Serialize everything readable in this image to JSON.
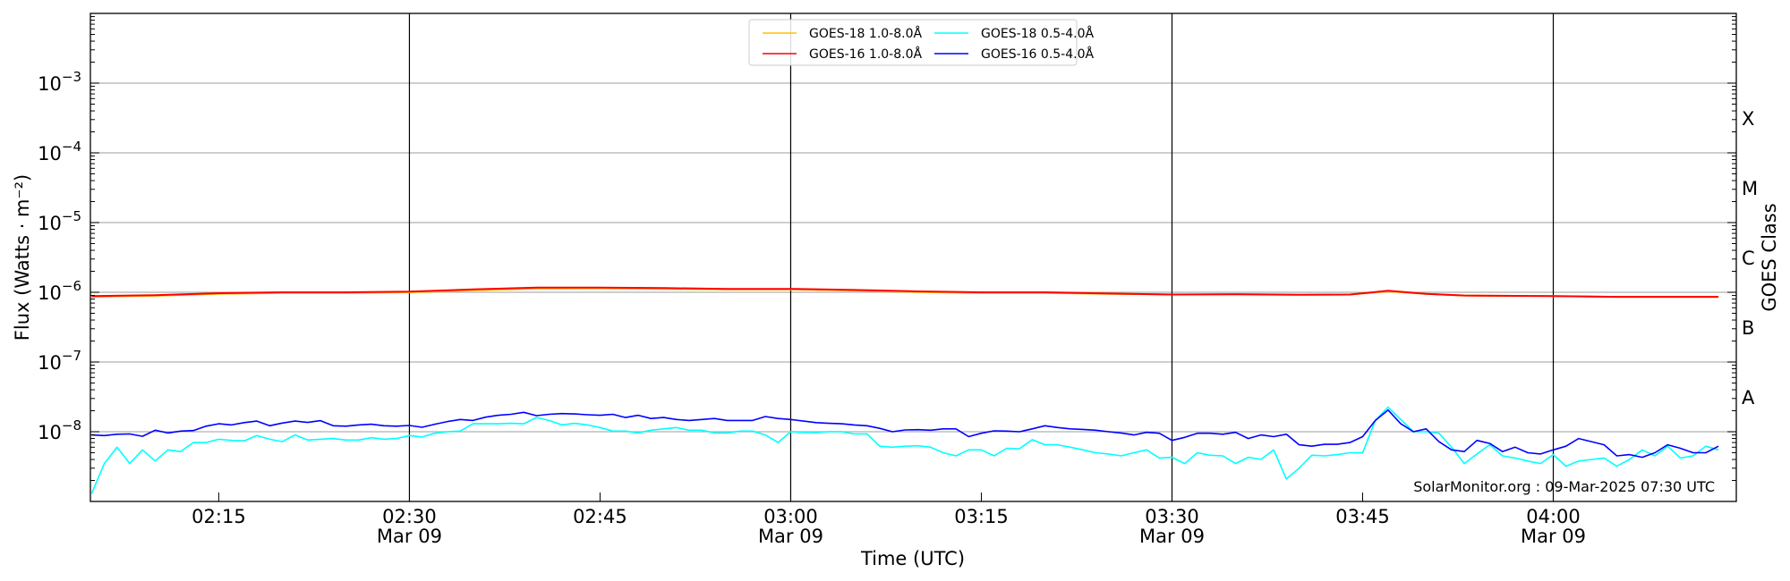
{
  "chart_data": {
    "type": "line",
    "xlabel": "Time (UTC)",
    "ylabel": "Flux (Watts · m⁻²)",
    "ylabel_right": "GOES Class",
    "yscale": "log",
    "ylim": [
      1e-09,
      0.01
    ],
    "xlim": [
      "02:04:54",
      "04:14:24"
    ],
    "grid": "horizontal at decades, vertical lines at major ticks",
    "legend_position": "top-center",
    "watermark": "SolarMonitor.org : 09-Mar-2025 07:30 UTC",
    "y_ticks": [
      {
        "value": 1e-08,
        "label": "10",
        "exp": "−8"
      },
      {
        "value": 1e-07,
        "label": "10",
        "exp": "−7"
      },
      {
        "value": 1e-06,
        "label": "10",
        "exp": "−6"
      },
      {
        "value": 1e-05,
        "label": "10",
        "exp": "−5"
      },
      {
        "value": 0.0001,
        "label": "10",
        "exp": "−4"
      },
      {
        "value": 0.001,
        "label": "10",
        "exp": "−3"
      }
    ],
    "class_labels": [
      {
        "label": "A",
        "value": 3.16e-08
      },
      {
        "label": "B",
        "value": 3.16e-07
      },
      {
        "label": "C",
        "value": 3.16e-06
      },
      {
        "label": "M",
        "value": 3.16e-05
      },
      {
        "label": "X",
        "value": 0.000316
      }
    ],
    "x_ticks": [
      {
        "time": "02:15",
        "label": "02:15",
        "date": ""
      },
      {
        "time": "02:30",
        "label": "02:30",
        "date": "Mar 09"
      },
      {
        "time": "02:45",
        "label": "02:45",
        "date": ""
      },
      {
        "time": "03:00",
        "label": "03:00",
        "date": "Mar 09"
      },
      {
        "time": "03:15",
        "label": "03:15",
        "date": ""
      },
      {
        "time": "03:30",
        "label": "03:30",
        "date": "Mar 09"
      },
      {
        "time": "03:45",
        "label": "03:45",
        "date": ""
      },
      {
        "time": "04:00",
        "label": "04:00",
        "date": "Mar 09"
      }
    ],
    "long_times": [
      "02:05",
      "02:10",
      "02:15",
      "02:20",
      "02:25",
      "02:30",
      "02:35",
      "02:40",
      "02:45",
      "02:50",
      "02:55",
      "03:00",
      "03:05",
      "03:10",
      "03:15",
      "03:20",
      "03:25",
      "03:30",
      "03:35",
      "03:40",
      "03:44",
      "03:47",
      "03:50",
      "03:53",
      "04:00",
      "04:05",
      "04:13"
    ],
    "short_times": [
      "02:05",
      "02:06",
      "02:07",
      "02:08",
      "02:09",
      "02:10",
      "02:11",
      "02:12",
      "02:13",
      "02:14",
      "02:15",
      "02:16",
      "02:17",
      "02:18",
      "02:19",
      "02:20",
      "02:21",
      "02:22",
      "02:23",
      "02:24",
      "02:25",
      "02:26",
      "02:27",
      "02:28",
      "02:29",
      "02:30",
      "02:31",
      "02:32",
      "02:33",
      "02:34",
      "02:35",
      "02:36",
      "02:37",
      "02:38",
      "02:39",
      "02:40",
      "02:41",
      "02:42",
      "02:43",
      "02:44",
      "02:45",
      "02:46",
      "02:47",
      "02:48",
      "02:49",
      "02:50",
      "02:51",
      "02:52",
      "02:53",
      "02:54",
      "02:55",
      "02:56",
      "02:57",
      "02:58",
      "02:59",
      "03:00",
      "03:01",
      "03:02",
      "03:03",
      "03:04",
      "03:05",
      "03:06",
      "03:07",
      "03:08",
      "03:09",
      "03:10",
      "03:11",
      "03:12",
      "03:13",
      "03:14",
      "03:15",
      "03:16",
      "03:17",
      "03:18",
      "03:19",
      "03:20",
      "03:21",
      "03:22",
      "03:23",
      "03:24",
      "03:25",
      "03:26",
      "03:27",
      "03:28",
      "03:29",
      "03:30",
      "03:31",
      "03:32",
      "03:33",
      "03:34",
      "03:35",
      "03:36",
      "03:37",
      "03:38",
      "03:39",
      "03:40",
      "03:41",
      "03:42",
      "03:43",
      "03:44",
      "03:45",
      "03:46",
      "03:47",
      "03:48",
      "03:49",
      "03:50",
      "03:51",
      "03:52",
      "03:53",
      "03:54",
      "03:55",
      "03:56",
      "03:57",
      "03:58",
      "03:59",
      "04:00",
      "04:01",
      "04:02",
      "04:03",
      "04:04",
      "04:05",
      "04:06",
      "04:07",
      "04:08",
      "04:09",
      "04:10",
      "04:11",
      "04:12",
      "04:13"
    ],
    "series": [
      {
        "name": "GOES-18 1.0-8.0Å",
        "color": "#ffc000",
        "times": "long_times",
        "values": [
          8.6e-07,
          8.9e-07,
          9.5e-07,
          9.8e-07,
          9.8e-07,
          1e-06,
          1.07e-06,
          1.13e-06,
          1.14e-06,
          1.12e-06,
          1.1e-06,
          1.1e-06,
          1.06e-06,
          1.01e-06,
          9.8e-07,
          9.8e-07,
          9.5e-07,
          9.3e-07,
          9.3e-07,
          9.2e-07,
          9.3e-07,
          1.03e-06,
          9.5e-07,
          9e-07,
          8.8e-07,
          8.6e-07,
          8.6e-07
        ]
      },
      {
        "name": "GOES-16 1.0-8.0Å",
        "color": "#ff0000",
        "times": "long_times",
        "values": [
          8.8e-07,
          9.1e-07,
          9.7e-07,
          1e-06,
          1e-06,
          1.02e-06,
          1.1e-06,
          1.17e-06,
          1.17e-06,
          1.15e-06,
          1.12e-06,
          1.12e-06,
          1.08e-06,
          1.03e-06,
          1e-06,
          1e-06,
          9.6e-07,
          9.3e-07,
          9.4e-07,
          9.2e-07,
          9.3e-07,
          1.05e-06,
          9.5e-07,
          9e-07,
          8.8e-07,
          8.6e-07,
          8.6e-07
        ]
      },
      {
        "name": "GOES-18 0.5-4.0Å",
        "color": "#00ffff",
        "times": "short_times",
        "values": [
          1.3e-09,
          3.5e-09,
          6e-09,
          3.5e-09,
          5.5e-09,
          3.8e-09,
          5.5e-09,
          5.2e-09,
          7e-09,
          7e-09,
          7.8e-09,
          7.5e-09,
          7.4e-09,
          8.8e-09,
          7.8e-09,
          7.2e-09,
          9e-09,
          7.6e-09,
          7.8e-09,
          8e-09,
          7.6e-09,
          7.6e-09,
          8.2e-09,
          7.8e-09,
          8e-09,
          8.8e-09,
          8.4e-09,
          9.5e-09,
          1e-08,
          1.02e-08,
          1.3e-08,
          1.3e-08,
          1.3e-08,
          1.32e-08,
          1.3e-08,
          1.6e-08,
          1.45e-08,
          1.25e-08,
          1.32e-08,
          1.25e-08,
          1.15e-08,
          1.02e-08,
          1.02e-08,
          9.6e-09,
          1.05e-08,
          1.1e-08,
          1.15e-08,
          1.05e-08,
          1.05e-08,
          9.6e-09,
          9.6e-09,
          1.02e-08,
          1.02e-08,
          9e-09,
          7e-09,
          1e-08,
          9.8e-09,
          9.7e-09,
          1e-08,
          1e-08,
          9.3e-09,
          9.3e-09,
          6.2e-09,
          6e-09,
          6.2e-09,
          6.3e-09,
          6e-09,
          5e-09,
          4.5e-09,
          5.5e-09,
          5.5e-09,
          4.5e-09,
          5.8e-09,
          5.7e-09,
          7.7e-09,
          6.5e-09,
          6.5e-09,
          6e-09,
          5.5e-09,
          5e-09,
          4.8e-09,
          4.5e-09,
          5e-09,
          5.5e-09,
          4.2e-09,
          4.3e-09,
          3.5e-09,
          5e-09,
          4.6e-09,
          4.5e-09,
          3.5e-09,
          4.3e-09,
          4e-09,
          5.5e-09,
          2.1e-09,
          3e-09,
          4.6e-09,
          4.5e-09,
          4.7e-09,
          5e-09,
          5e-09,
          1.45e-08,
          2.25e-08,
          1.5e-08,
          1e-08,
          1e-08,
          9.5e-09,
          6e-09,
          3.5e-09,
          4.8e-09,
          6.5e-09,
          4.5e-09,
          4.2e-09,
          3.8e-09,
          3.5e-09,
          4.7e-09,
          3.2e-09,
          3.8e-09,
          4e-09,
          4.2e-09,
          3.2e-09,
          4e-09,
          5.5e-09,
          4.5e-09,
          6.2e-09,
          4.2e-09,
          4.5e-09,
          6.2e-09,
          5.5e-09
        ]
      },
      {
        "name": "GOES-16 0.5-4.0Å",
        "color": "#0000ff",
        "times": "short_times",
        "values": [
          9e-09,
          8.8e-09,
          9.2e-09,
          9.3e-09,
          8.6e-09,
          1.05e-08,
          9.6e-09,
          1.02e-08,
          1.04e-08,
          1.2e-08,
          1.3e-08,
          1.25e-08,
          1.35e-08,
          1.42e-08,
          1.22e-08,
          1.33e-08,
          1.42e-08,
          1.36e-08,
          1.44e-08,
          1.22e-08,
          1.2e-08,
          1.25e-08,
          1.28e-08,
          1.22e-08,
          1.2e-08,
          1.23e-08,
          1.16e-08,
          1.28e-08,
          1.4e-08,
          1.5e-08,
          1.45e-08,
          1.62e-08,
          1.72e-08,
          1.78e-08,
          1.9e-08,
          1.7e-08,
          1.78e-08,
          1.82e-08,
          1.8e-08,
          1.75e-08,
          1.72e-08,
          1.78e-08,
          1.6e-08,
          1.72e-08,
          1.55e-08,
          1.6e-08,
          1.5e-08,
          1.45e-08,
          1.5e-08,
          1.55e-08,
          1.45e-08,
          1.45e-08,
          1.45e-08,
          1.65e-08,
          1.55e-08,
          1.5e-08,
          1.42e-08,
          1.35e-08,
          1.32e-08,
          1.3e-08,
          1.25e-08,
          1.22e-08,
          1.12e-08,
          1e-08,
          1.06e-08,
          1.07e-08,
          1.05e-08,
          1.1e-08,
          1.1e-08,
          8.5e-09,
          9.5e-09,
          1.03e-08,
          1.02e-08,
          1e-08,
          1.1e-08,
          1.22e-08,
          1.15e-08,
          1.1e-08,
          1.08e-08,
          1.05e-08,
          1e-08,
          9.6e-09,
          9e-09,
          9.8e-09,
          9.5e-09,
          7.5e-09,
          8.3e-09,
          9.5e-09,
          9.5e-09,
          9.2e-09,
          9.8e-09,
          8e-09,
          9e-09,
          8.5e-09,
          9.2e-09,
          6.5e-09,
          6.2e-09,
          6.6e-09,
          6.6e-09,
          7e-09,
          8.5e-09,
          1.45e-08,
          2.05e-08,
          1.3e-08,
          1e-08,
          1.1e-08,
          7.2e-09,
          5.5e-09,
          5.2e-09,
          7.5e-09,
          6.8e-09,
          5.2e-09,
          6e-09,
          5e-09,
          4.8e-09,
          5.5e-09,
          6.2e-09,
          8e-09,
          7.2e-09,
          6.5e-09,
          4.5e-09,
          4.7e-09,
          4.3e-09,
          5e-09,
          6.5e-09,
          5.8e-09,
          5e-09,
          5e-09,
          6.2e-09
        ]
      }
    ]
  }
}
